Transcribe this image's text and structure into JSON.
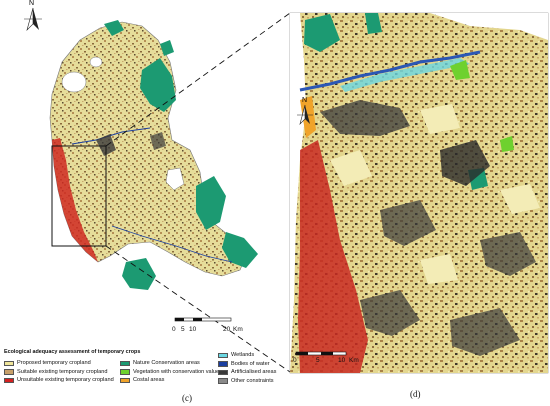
{
  "panel_c": {
    "label": "(c)",
    "north": "N",
    "scale": {
      "ticks": [
        "0",
        "5",
        "10",
        "20"
      ],
      "unit": "Km"
    }
  },
  "panel_d": {
    "label": "(d)",
    "north": "N",
    "scale": {
      "ticks": [
        "0",
        "5",
        "10"
      ],
      "unit": "Km"
    }
  },
  "legend": {
    "title": "Ecological adequacy assessment of temporary crops",
    "columns": [
      [
        {
          "label": "Proposed temporary cropland",
          "color": "#efe59a"
        },
        {
          "label": "Suitable existing temporary cropland",
          "color": "#c7a06a"
        },
        {
          "label": "Unsuitable existing temporary cropland",
          "color": "#d42020"
        }
      ],
      [
        {
          "label": "Nature Conservation areas",
          "color": "#1c9a72"
        },
        {
          "label": "Vegetation with conservation value",
          "color": "#6ed12e"
        },
        {
          "label": "Costal areas",
          "color": "#f0a32a"
        }
      ],
      [
        {
          "label": "Wetlands",
          "color": "#6ad7e2"
        },
        {
          "label": "Bodies of water",
          "color": "#1b3fa0"
        },
        {
          "label": "Artificialised areas",
          "color": "#3a3a3a"
        },
        {
          "label": "Other constraints",
          "color": "#8a8a8a"
        }
      ]
    ]
  }
}
